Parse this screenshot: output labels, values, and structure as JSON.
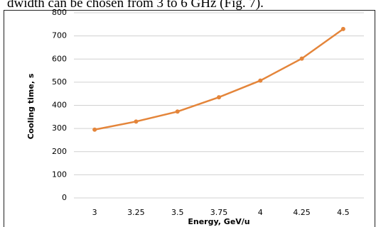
{
  "text_above": "dwidth can be chosen from 3 to 6 GHz (Fig. 7).",
  "chart_data": {
    "type": "line",
    "x_label": "Energy, GeV/u",
    "y_label": "Cooling time, s",
    "x": [
      3,
      3.25,
      3.5,
      3.75,
      4,
      4.25,
      4.5
    ],
    "series": [
      {
        "color": "#e4853a",
        "values": [
          295,
          330,
          373,
          435,
          507,
          602,
          730
        ]
      }
    ],
    "xlim": [
      2.875,
      4.625
    ],
    "xticks": [
      3,
      3.25,
      3.5,
      3.75,
      4,
      4.25,
      4.5
    ],
    "ylim": [
      0,
      800
    ],
    "yticks": [
      0,
      100,
      200,
      300,
      400,
      500,
      600,
      700,
      800
    ],
    "grid": true
  }
}
